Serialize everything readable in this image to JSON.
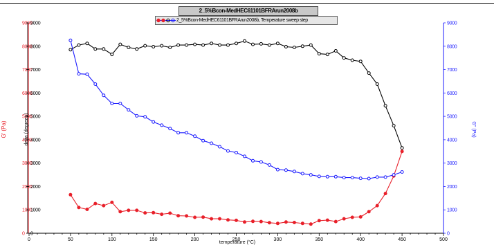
{
  "chart_data": {
    "type": "line",
    "title": "2_5%Bcon-MedHEC61101BFRArun2008b",
    "legend": {
      "entries": [
        {
          "label": "2_5%Bcon-MedHEC61101BFRArun2008b, Temperature sweep step",
          "marker_colors": [
            "#e8202a",
            "#000000",
            "#1a1aff"
          ]
        }
      ],
      "placement": "top-center"
    },
    "x": {
      "label": "temperature (°C)",
      "lim": [
        0,
        500
      ],
      "ticks": [
        "0",
        "50",
        "100",
        "150",
        "200",
        "250",
        "300",
        "350",
        "400",
        "450",
        "500"
      ]
    },
    "y_left_red": {
      "label": "G' (Pa)",
      "color": "#e8202a",
      "lim": [
        0,
        9000
      ],
      "ticks": [
        "0",
        "1000",
        "2000",
        "3000",
        "4000",
        "5000",
        "6000",
        "7000",
        "8000",
        "9000"
      ]
    },
    "y_left_black": {
      "label": "delta (degrees)",
      "color": "#000000",
      "lim": [
        0,
        9000
      ],
      "ticks": [
        "0",
        "1000",
        "2000",
        "3000",
        "4000",
        "5000",
        "6000",
        "7000",
        "8000",
        "9000"
      ]
    },
    "y_right_blue": {
      "label": "G'' (Pa)",
      "color": "#1a1aff",
      "lim": [
        0,
        9000
      ],
      "ticks": [
        "0",
        "1000",
        "2000",
        "3000",
        "4000",
        "5000",
        "6000",
        "7000",
        "8000",
        "9000"
      ]
    },
    "grid": false,
    "series": [
      {
        "name": "G'",
        "color": "#e8202a",
        "axis": "y_left_red",
        "x": [
          50,
          60,
          70,
          80,
          90,
          100,
          110,
          120,
          130,
          140,
          150,
          160,
          170,
          180,
          190,
          200,
          210,
          220,
          230,
          240,
          250,
          260,
          270,
          280,
          290,
          300,
          310,
          320,
          330,
          340,
          350,
          360,
          370,
          380,
          390,
          400,
          410,
          420,
          430,
          440,
          450
        ],
        "y": [
          1650,
          1100,
          1020,
          1270,
          1180,
          1320,
          920,
          980,
          980,
          870,
          880,
          810,
          860,
          750,
          740,
          680,
          690,
          620,
          620,
          570,
          550,
          480,
          510,
          500,
          450,
          420,
          480,
          460,
          420,
          390,
          540,
          560,
          500,
          620,
          680,
          700,
          920,
          1180,
          1700,
          2450,
          3500
        ]
      },
      {
        "name": "delta",
        "color": "#000000",
        "axis": "y_left_black",
        "x": [
          50,
          60,
          70,
          80,
          90,
          100,
          110,
          120,
          130,
          140,
          150,
          160,
          170,
          180,
          190,
          200,
          210,
          220,
          230,
          240,
          250,
          260,
          270,
          280,
          290,
          300,
          310,
          320,
          330,
          340,
          350,
          360,
          370,
          380,
          390,
          400,
          410,
          420,
          430,
          440,
          450
        ],
        "y": [
          7850,
          8050,
          8120,
          7880,
          7880,
          7650,
          8080,
          7950,
          7880,
          8020,
          7980,
          8020,
          7950,
          8050,
          8050,
          8080,
          8050,
          8120,
          8050,
          8050,
          8120,
          8220,
          8080,
          8100,
          8050,
          8120,
          7980,
          7950,
          8000,
          8050,
          7680,
          7650,
          7800,
          7500,
          7400,
          7350,
          6850,
          6380,
          5450,
          4600,
          3650
        ]
      },
      {
        "name": "G''",
        "color": "#1a1aff",
        "axis": "y_right_blue",
        "x": [
          50,
          60,
          70,
          80,
          90,
          100,
          110,
          120,
          130,
          140,
          150,
          160,
          170,
          180,
          190,
          200,
          210,
          220,
          230,
          240,
          250,
          260,
          270,
          280,
          290,
          300,
          310,
          320,
          330,
          340,
          350,
          360,
          370,
          380,
          390,
          400,
          410,
          420,
          430,
          440,
          450
        ],
        "y": [
          8250,
          6820,
          6800,
          6380,
          5900,
          5550,
          5550,
          5280,
          5020,
          4980,
          4760,
          4620,
          4480,
          4300,
          4300,
          4150,
          3960,
          3850,
          3700,
          3520,
          3450,
          3290,
          3100,
          3050,
          2920,
          2720,
          2700,
          2640,
          2550,
          2500,
          2430,
          2420,
          2420,
          2380,
          2380,
          2350,
          2340,
          2400,
          2400,
          2500,
          2620
        ]
      }
    ]
  }
}
